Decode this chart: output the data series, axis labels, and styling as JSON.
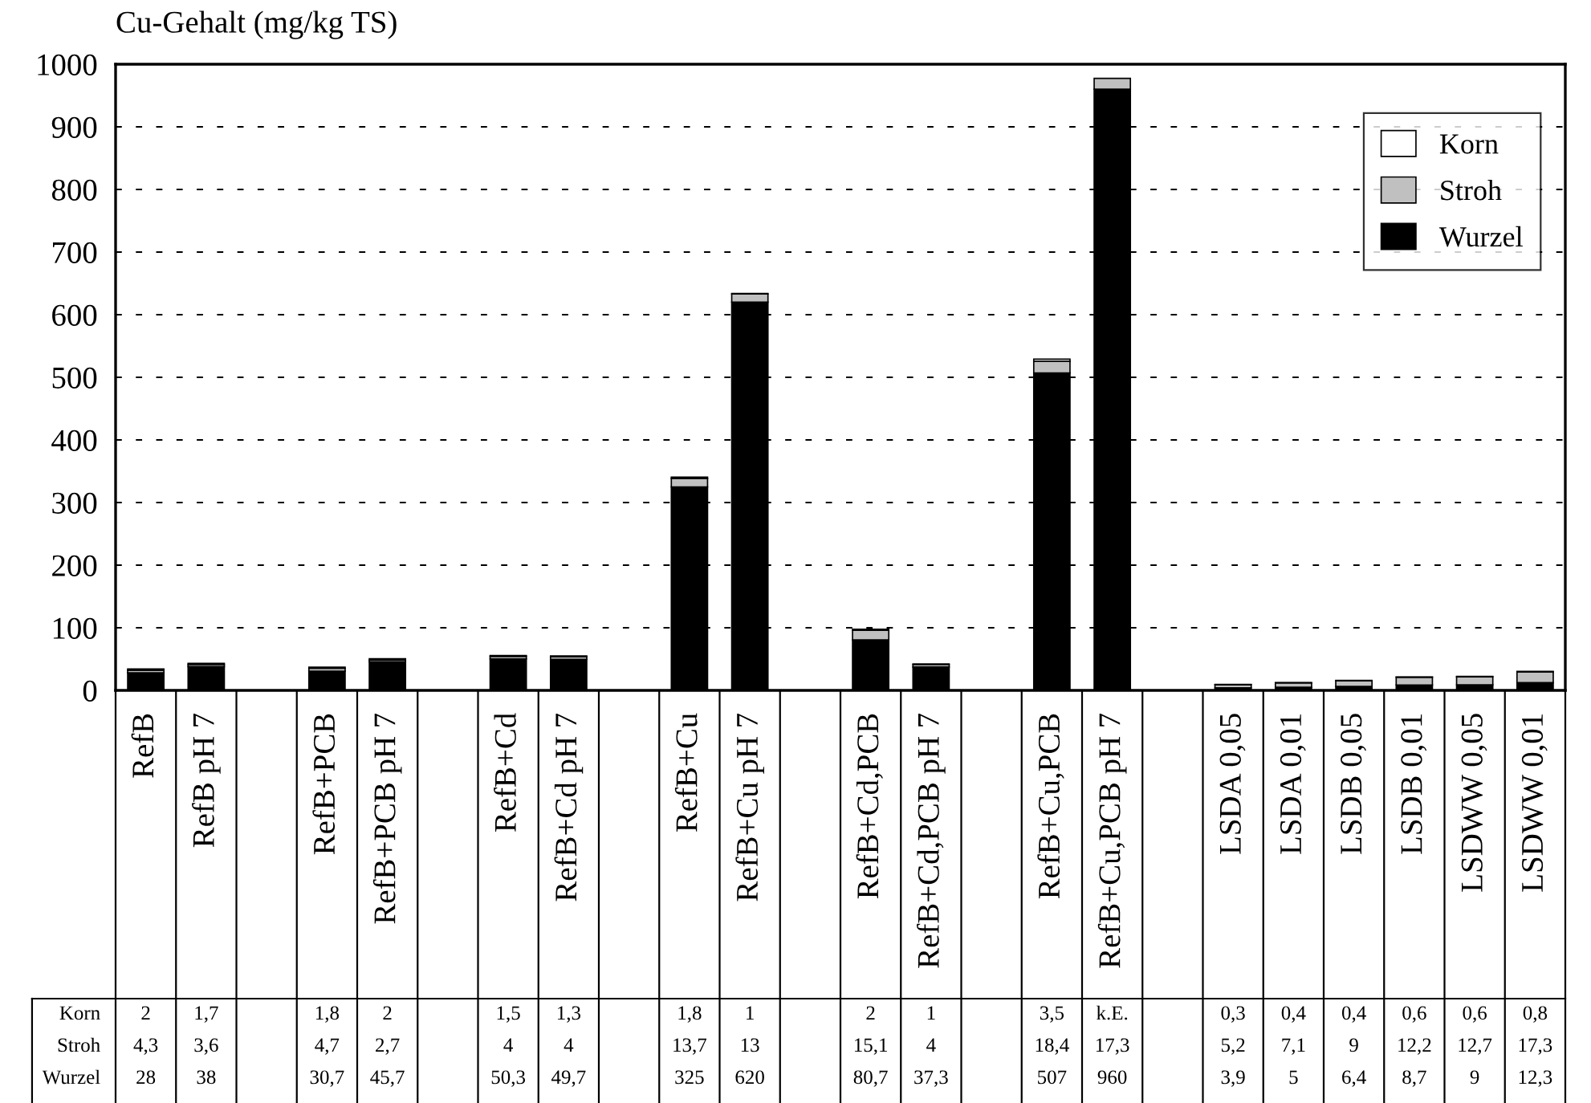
{
  "chart_data": {
    "type": "bar",
    "stacked": true,
    "ylabel": "Cu-Gehalt (mg/kg TS)",
    "categories": [
      "RefB",
      "RefB pH 7",
      null,
      "RefB+PCB",
      "RefB+PCB pH 7",
      null,
      "RefB+Cd",
      "RefB+Cd pH 7",
      null,
      "RefB+Cu",
      "RefB+Cu pH 7",
      null,
      "RefB+Cd,PCB",
      "RefB+Cd,PCB pH 7",
      null,
      "RefB+Cu,PCB",
      "RefB+Cu,PCB pH 7",
      null,
      "LSDA 0,05",
      "LSDA 0,01",
      "LSDB 0,05",
      "LSDB 0,01",
      "LSDWW 0,05",
      "LSDWW 0,01"
    ],
    "series": [
      {
        "name": "Wurzel",
        "color": "#000000",
        "values": [
          28,
          38,
          null,
          30.7,
          45.7,
          null,
          50.3,
          49.7,
          null,
          325,
          620,
          null,
          80.7,
          37.3,
          null,
          507,
          960,
          null,
          3.9,
          5,
          6.4,
          8.7,
          9,
          12.3
        ],
        "value_labels": [
          "28",
          "38",
          null,
          "30,7",
          "45,7",
          null,
          "50,3",
          "49,7",
          null,
          "325",
          "620",
          null,
          "80,7",
          "37,3",
          null,
          "507",
          "960",
          null,
          "3,9",
          "5",
          "6,4",
          "8,7",
          "9",
          "12,3"
        ]
      },
      {
        "name": "Stroh",
        "color": "#c0c0c0",
        "values": [
          4.3,
          3.6,
          null,
          4.7,
          2.7,
          null,
          4,
          4,
          null,
          13.7,
          13,
          null,
          15.1,
          4,
          null,
          18.4,
          17.3,
          null,
          5.2,
          7.1,
          9,
          12.2,
          12.7,
          17.3
        ],
        "value_labels": [
          "4,3",
          "3,6",
          null,
          "4,7",
          "2,7",
          null,
          "4",
          "4",
          null,
          "13,7",
          "13",
          null,
          "15,1",
          "4",
          null,
          "18,4",
          "17,3",
          null,
          "5,2",
          "7,1",
          "9",
          "12,2",
          "12,7",
          "17,3"
        ]
      },
      {
        "name": "Korn",
        "color": "#ffffff",
        "values": [
          2,
          1.7,
          null,
          1.8,
          2,
          null,
          1.5,
          1.3,
          null,
          1.8,
          1,
          null,
          2,
          1,
          null,
          3.5,
          null,
          null,
          0.3,
          0.4,
          0.4,
          0.6,
          0.6,
          0.8
        ],
        "value_labels": [
          "2",
          "1,7",
          null,
          "1,8",
          "2",
          null,
          "1,5",
          "1,3",
          null,
          "1,8",
          "1",
          null,
          "2",
          "1",
          null,
          "3,5",
          "k.E.",
          null,
          "0,3",
          "0,4",
          "0,4",
          "0,6",
          "0,6",
          "0,8"
        ]
      }
    ],
    "ylim": [
      0,
      1000
    ],
    "yticks": [
      0,
      100,
      200,
      300,
      400,
      500,
      600,
      700,
      800,
      900,
      1000
    ],
    "grid": "y",
    "legend": "top right"
  }
}
